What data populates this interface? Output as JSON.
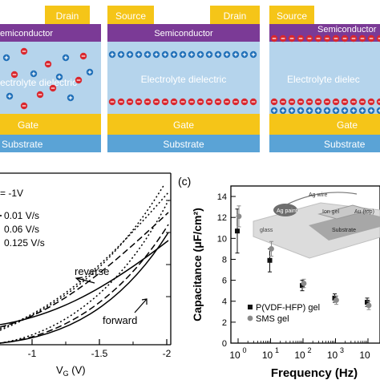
{
  "colors": {
    "electrode": "#f5c518",
    "semiconductor": "#7b3a96",
    "electrolyte": "#b5d4ec",
    "gate": "#f5c518",
    "substrate": "#5aa3d6",
    "neg_ion": "#d9282f",
    "pos_ion": "#1f6fb8",
    "gel_pvdf": "#111111",
    "gel_sms": "#8a8a8a"
  },
  "panels": [
    {
      "labels": {
        "drain": "Drain",
        "semiconductor": "emiconductor",
        "electrolyte": "ectrolyte dielectric",
        "gate": "Gate",
        "substrate": "Substrate"
      }
    },
    {
      "labels": {
        "source": "Source",
        "drain": "Drain",
        "semiconductor": "Semiconductor",
        "electrolyte": "Electrolyte dielectric",
        "gate": "Gate",
        "substrate": "Substrate"
      }
    },
    {
      "labels": {
        "source": "Source",
        "semiconductor": "Semiconductor",
        "electrolyte": "Electrolyte dielec",
        "gate": "Gate",
        "substrate": "Substrate"
      }
    }
  ],
  "panel_b": {
    "legend_head": "= -1V",
    "sweep_rates": [
      "0.01 V/s",
      "0.06 V/s",
      "0.125 V/s"
    ],
    "reverse_label": "reverse",
    "forward_label": "forward",
    "xlabel_main": "V",
    "xlabel_sub": "G",
    "xlabel_unit": " (V)",
    "xticks": [
      "-1",
      "-1.5",
      "-2"
    ]
  },
  "panel_c": {
    "panel_label": "(c)",
    "ylabel": "Capacitance (μF/cm²)",
    "xlabel": "Frequency (Hz)",
    "yticks": [
      "0",
      "2",
      "4",
      "6",
      "8",
      "10",
      "12",
      "14"
    ],
    "xticks": [
      {
        "base": "10",
        "exp": "0"
      },
      {
        "base": "10",
        "exp": "1"
      },
      {
        "base": "10",
        "exp": "2"
      },
      {
        "base": "10",
        "exp": "3"
      },
      {
        "base": "10",
        "exp": ""
      }
    ],
    "inset": {
      "ag_paint": "Ag paint",
      "ag_wire": "Ag wire",
      "ion_gel": "Ion gel",
      "au_top": "Au (top)",
      "substrate": "Substrate",
      "glass": "glass"
    },
    "legend": [
      {
        "name": "P(VDF-HFP) gel",
        "color": "#111111"
      },
      {
        "name": "SMS gel",
        "color": "#8a8a8a"
      }
    ]
  },
  "chart_data": {
    "type": "scatter",
    "xlabel": "Frequency (Hz)",
    "ylabel": "Capacitance (μF/cm²)",
    "xscale": "log",
    "xlim": [
      0.5,
      10000
    ],
    "ylim": [
      0,
      15
    ],
    "series": [
      {
        "name": "P(VDF-HFP) gel",
        "x": [
          1,
          10,
          100,
          1000,
          10000
        ],
        "y": [
          10.7,
          7.9,
          5.5,
          4.3,
          3.9
        ],
        "err": [
          2.1,
          1.1,
          0.5,
          0.4,
          0.4
        ]
      },
      {
        "name": "SMS gel",
        "x": [
          1,
          10,
          100,
          1000,
          10000
        ],
        "y": [
          12.1,
          9.0,
          5.7,
          4.1,
          3.6
        ],
        "err": [
          1.0,
          0.7,
          0.4,
          0.4,
          0.4
        ]
      }
    ]
  }
}
